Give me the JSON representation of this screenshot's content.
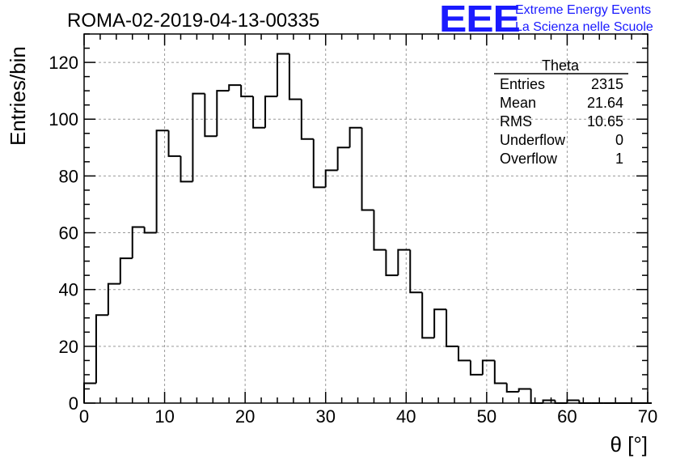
{
  "chart_data": {
    "type": "histogram",
    "title": "ROMA-02-2019-04-13-00335",
    "xlabel": "θ [°]",
    "ylabel": "Entries/bin",
    "xlim": [
      0,
      70
    ],
    "ylim": [
      0,
      130
    ],
    "grid": true,
    "x_ticks": [
      "0",
      "10",
      "20",
      "30",
      "40",
      "50",
      "60",
      "70"
    ],
    "y_ticks": [
      "0",
      "20",
      "40",
      "60",
      "80",
      "100",
      "120"
    ],
    "bin_width": 1.5,
    "bin_edges_start": 0,
    "values": [
      7,
      31,
      42,
      51,
      62,
      60,
      96,
      87,
      78,
      109,
      94,
      110,
      112,
      108,
      97,
      108,
      123,
      107,
      93,
      76,
      82,
      90,
      97,
      68,
      54,
      45,
      54,
      39,
      23,
      33,
      20,
      15,
      10,
      15,
      7,
      4,
      5,
      0,
      1,
      0,
      1,
      0,
      0,
      0,
      0,
      0,
      0
    ],
    "stats_box": {
      "title": "Theta",
      "rows": [
        {
          "label": "Entries",
          "value": "2315"
        },
        {
          "label": "Mean",
          "value": "21.64"
        },
        {
          "label": "RMS",
          "value": "10.65"
        },
        {
          "label": "Underflow",
          "value": "0"
        },
        {
          "label": "Overflow",
          "value": "1"
        }
      ]
    },
    "line_color": "#000000",
    "grid_color": "#999999"
  },
  "logo": {
    "mark": "EEE",
    "line1": "Extreme Energy Events",
    "line2": "La Scienza nelle Scuole",
    "color": "#1a1aff"
  }
}
